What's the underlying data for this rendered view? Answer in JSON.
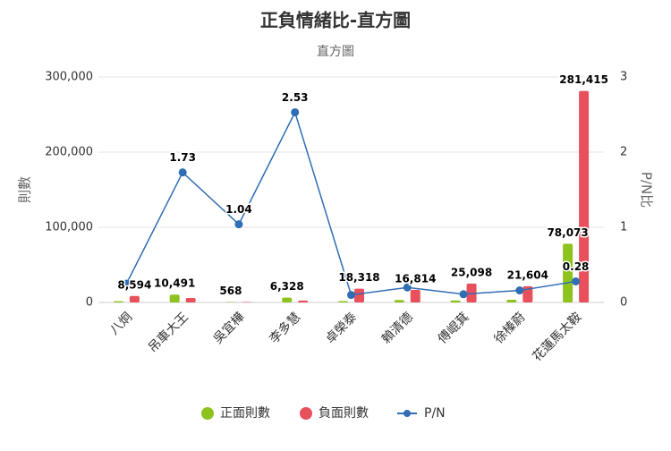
{
  "chart_data": {
    "type": "bar-line",
    "title": "正負情緒比-直方圖",
    "subtitle": "直方圖",
    "y_label": "則數",
    "y2_label": "P/N比",
    "categories": [
      "八炯",
      "吊車大王",
      "吳宜樺",
      "李多慧",
      "卓榮泰",
      "賴清德",
      "傅崐萁",
      "徐榛蔚",
      "花蓮馬太鞍"
    ],
    "series": [
      {
        "name": "正面則數",
        "type": "bar",
        "color": "#8dc21f",
        "values": [
          1700,
          10491,
          568,
          6328,
          1800,
          3300,
          2700,
          3500,
          78073
        ],
        "value_labels": [
          null,
          "10,491",
          "568",
          "6,328",
          null,
          null,
          null,
          null,
          "78,073"
        ]
      },
      {
        "name": "負面則數",
        "type": "bar",
        "color": "#e8505b",
        "values": [
          8594,
          6000,
          546,
          2500,
          18318,
          16814,
          25098,
          21604,
          281415
        ],
        "value_labels": [
          "8,594",
          null,
          null,
          null,
          "18,318",
          "16,814",
          "25,098",
          "21,604",
          "281,415"
        ]
      },
      {
        "name": "P/N",
        "type": "line",
        "axis": "y2",
        "color": "#2f6db5",
        "values": [
          0.25,
          1.73,
          1.04,
          2.53,
          0.1,
          0.2,
          0.11,
          0.16,
          0.28
        ],
        "value_labels": [
          null,
          "1.73",
          "1.04",
          "2.53",
          null,
          null,
          null,
          null,
          "0.28"
        ]
      }
    ],
    "ylim": [
      0,
      300000
    ],
    "yticks": [
      {
        "value": 0,
        "label": "0"
      },
      {
        "value": 100000,
        "label": "100,000"
      },
      {
        "value": 200000,
        "label": "200,000"
      },
      {
        "value": 300000,
        "label": "300,000"
      }
    ],
    "y2lim": [
      0,
      3
    ],
    "y2ticks": [
      0,
      1,
      2,
      3
    ],
    "grid": true
  }
}
